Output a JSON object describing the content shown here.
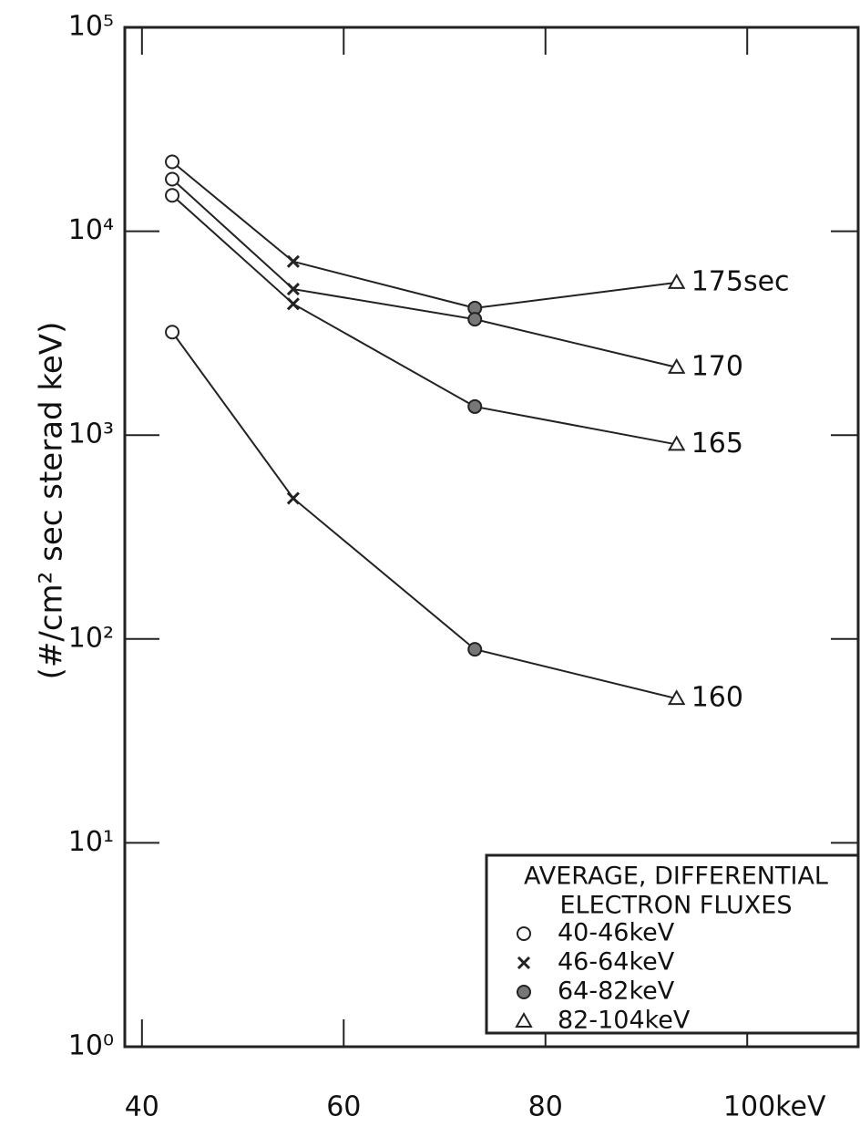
{
  "chart_data": {
    "type": "line",
    "log_y": true,
    "grid": false,
    "y_label": "(#/cm² sec sterad keV)",
    "x": [
      43,
      55,
      73,
      93
    ],
    "xlim": [
      38.3,
      111
    ],
    "xticks": [
      40,
      60,
      80,
      {
        "value": 100,
        "label": "100keV"
      }
    ],
    "ylim": [
      1,
      100000
    ],
    "yticks": [
      {
        "value": 1,
        "label": "10⁰"
      },
      {
        "value": 10,
        "label": "10¹"
      },
      {
        "value": 100,
        "label": "10²"
      },
      {
        "value": 1000,
        "label": "10³"
      },
      {
        "value": 10000,
        "label": "10⁴"
      },
      {
        "value": 100000,
        "label": "10⁵"
      }
    ],
    "series": [
      {
        "name": "175sec",
        "color": "#222",
        "values": [
          21900,
          7100,
          4200,
          5600
        ]
      },
      {
        "name": "170",
        "color": "#222",
        "values": [
          18000,
          5200,
          3700,
          2150
        ]
      },
      {
        "name": "165",
        "color": "#222",
        "values": [
          15000,
          4400,
          1380,
          900
        ]
      },
      {
        "name": "160",
        "color": "#222",
        "values": [
          3200,
          490,
          89,
          51
        ]
      }
    ],
    "legend": {
      "title": [
        "AVERAGE, DIFFERENTIAL",
        "ELECTRON FLUXES"
      ],
      "items": [
        {
          "marker": "circle",
          "label": "40-46keV"
        },
        {
          "marker": "cross",
          "label": "46-64keV"
        },
        {
          "marker": "dot",
          "label": "64-82keV"
        },
        {
          "marker": "triangle",
          "label": "82-104keV"
        }
      ]
    }
  }
}
